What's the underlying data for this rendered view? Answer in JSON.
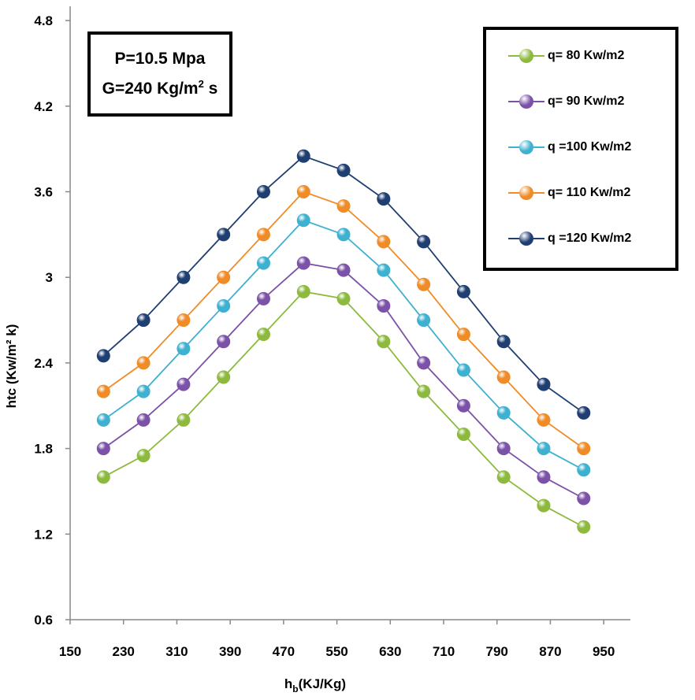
{
  "chart_data": {
    "type": "line",
    "title": "",
    "xlabel_main": "h",
    "xlabel_sub": "b",
    "xlabel_unit": "(KJ/Kg)",
    "ylabel": "htc (Kw/m² k)",
    "xlim": [
      150,
      990
    ],
    "ylim": [
      0.6,
      4.9
    ],
    "x_ticks": [
      150,
      230,
      310,
      390,
      470,
      550,
      630,
      710,
      790,
      870,
      950
    ],
    "y_ticks": [
      0.6,
      1.2,
      1.8,
      2.4,
      3,
      3.6,
      4.2,
      4.8
    ],
    "y_tick_labels": [
      "0.6",
      "1.2",
      "1.8",
      "2.4",
      "3",
      "3.6",
      "4.2",
      "4.8"
    ],
    "x": [
      200,
      260,
      320,
      380,
      440,
      500,
      560,
      620,
      680,
      740,
      800,
      860,
      920
    ],
    "series": [
      {
        "name": "q= 80 Kw/m2",
        "color": "#8dba3e",
        "values": [
          1.6,
          1.75,
          2.0,
          2.3,
          2.6,
          2.9,
          2.85,
          2.55,
          2.2,
          1.9,
          1.6,
          1.4,
          1.25
        ]
      },
      {
        "name": "q= 90 Kw/m2",
        "color": "#7b52a8",
        "values": [
          1.8,
          2.0,
          2.25,
          2.55,
          2.85,
          3.1,
          3.05,
          2.8,
          2.4,
          2.1,
          1.8,
          1.6,
          1.45
        ]
      },
      {
        "name": "q =100 Kw/m2",
        "color": "#3fb1d0",
        "values": [
          2.0,
          2.2,
          2.5,
          2.8,
          3.1,
          3.4,
          3.3,
          3.05,
          2.7,
          2.35,
          2.05,
          1.8,
          1.65
        ]
      },
      {
        "name": "q= 110 Kw/m2",
        "color": "#f08c28",
        "values": [
          2.2,
          2.4,
          2.7,
          3.0,
          3.3,
          3.6,
          3.5,
          3.25,
          2.95,
          2.6,
          2.3,
          2.0,
          1.8
        ]
      },
      {
        "name": "q =120 Kw/m2",
        "color": "#1f3f72",
        "values": [
          2.45,
          2.7,
          3.0,
          3.3,
          3.6,
          3.85,
          3.75,
          3.55,
          3.25,
          2.9,
          2.55,
          2.25,
          2.05
        ]
      }
    ],
    "legend_position": "top-right",
    "grid": false
  },
  "info": {
    "pressure": "P=10.5 Mpa",
    "flux_prefix": "G=240 Kg/m",
    "flux_exp": "2",
    "flux_suffix": " s"
  }
}
